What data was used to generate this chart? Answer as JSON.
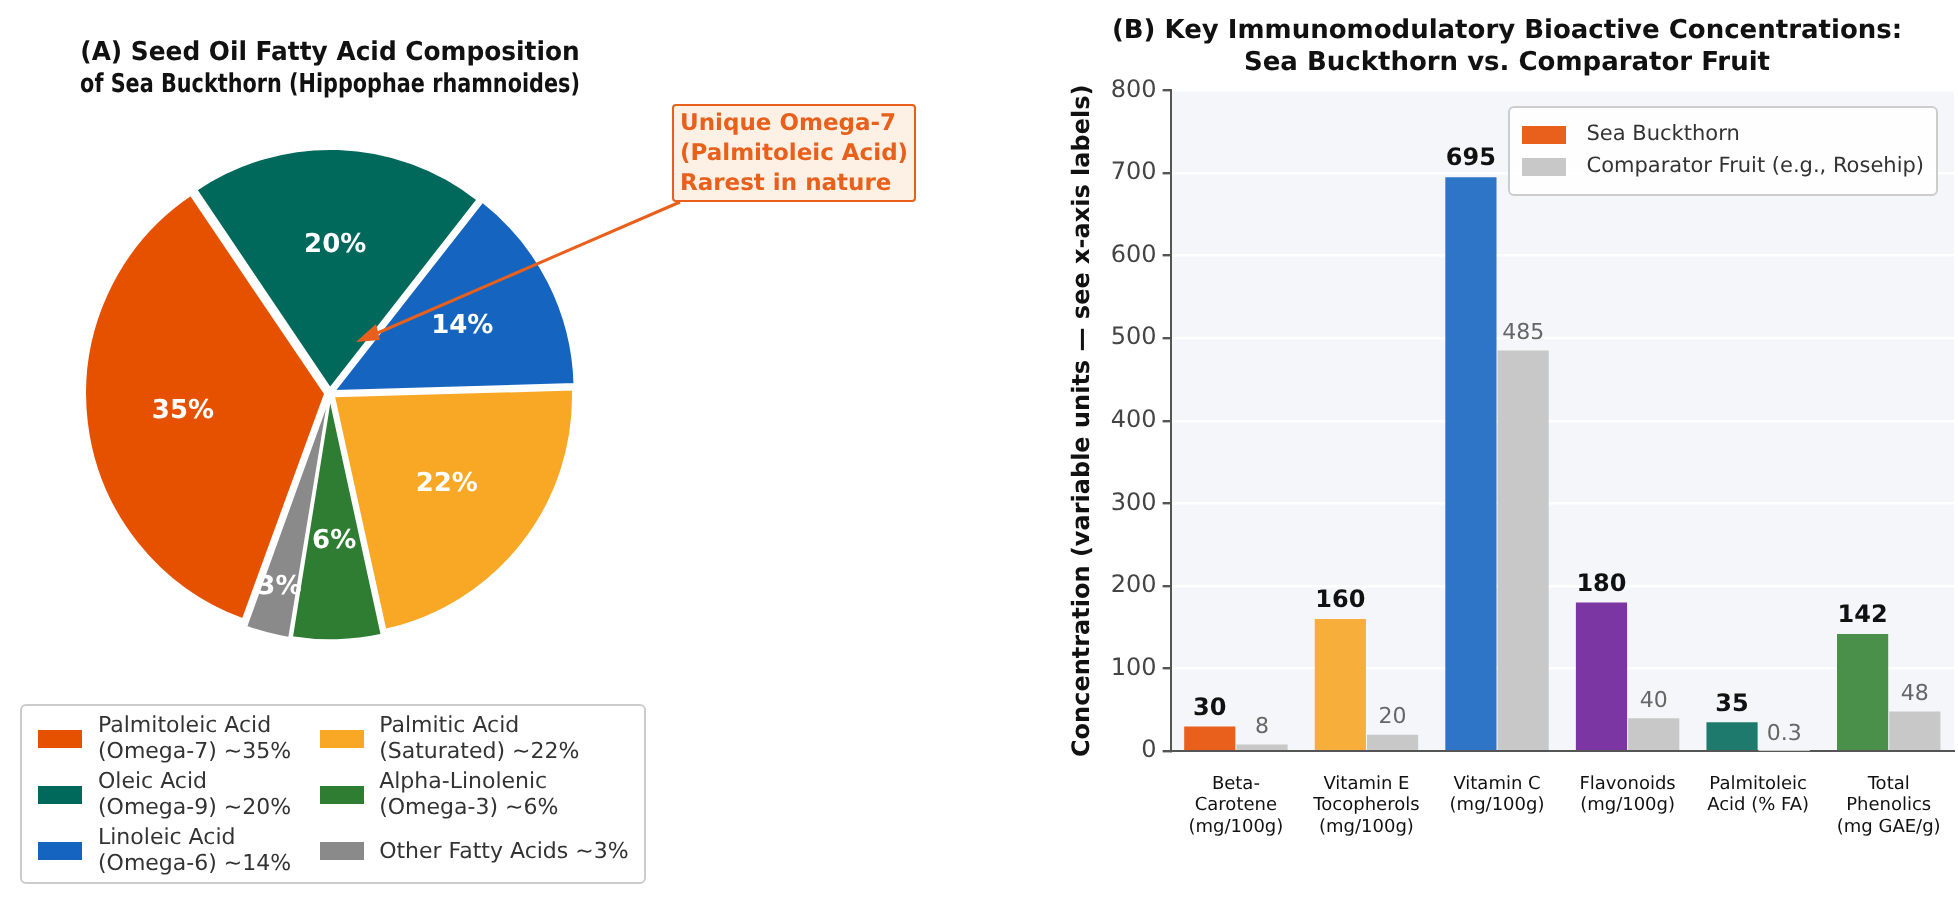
{
  "chart_data": [
    {
      "type": "pie",
      "title": "(A) Seed Oil Fatty Acid Composition\nof Sea Buckthorn (Hippophae rhamnoides)",
      "categories": [
        "Palmitoleic Acid\n(Omega-7) ~35%",
        "Oleic Acid\n(Omega-9) ~20%",
        "Linoleic Acid\n(Omega-6) ~14%",
        "Palmitic Acid\n(Saturated) ~22%",
        "Alpha-Linolenic\n(Omega-3) ~6%",
        "Other Fatty Acids ~3%"
      ],
      "values": [
        35,
        20,
        14,
        22,
        6,
        3
      ],
      "colors": [
        "#e65100",
        "#00695c",
        "#1565c0",
        "#f9a825",
        "#2e7d32",
        "#8a8a8a"
      ],
      "value_labels": [
        "35%",
        "20%",
        "14%",
        "22%",
        "6%",
        "3%"
      ],
      "legend": "bottom",
      "annotations": [
        "Unique Omega-7\n(Palmitoleic Acid)\nRarest in nature"
      ]
    },
    {
      "type": "bar",
      "title": "(B) Key Immunomodulatory Bioactive Concentrations:\nSea Buckthorn vs. Comparator Fruit",
      "categories": [
        "Beta-Carotene\n(mg/100g)",
        "Vitamin E\nTocopherols\n(mg/100g)",
        "Vitamin C\n(mg/100g)",
        "Flavonoids\n(mg/100g)",
        "Palmitoleic\nAcid (% FA)",
        "Total Phenolics\n(mg GAE/g)"
      ],
      "series": [
        {
          "name": "Sea Buckthorn",
          "color": "#e8601c",
          "colors": [
            "#e8601c",
            "#f7ae3a",
            "#2e75c7",
            "#7b36a3",
            "#1f7a6e",
            "#4a8f4a"
          ],
          "values": [
            30,
            160,
            695,
            180,
            35,
            142
          ]
        },
        {
          "name": "Comparator Fruit (e.g., Rosehip)",
          "color": "#c8c8c8",
          "values": [
            8,
            20,
            485,
            40,
            0.3,
            48
          ]
        }
      ],
      "ylabel": "Concentration (variable units — see x-axis labels)",
      "ylim": [
        0,
        800
      ],
      "yticks": [
        0,
        100,
        200,
        300,
        400,
        500,
        600,
        700,
        800
      ],
      "grid": "y",
      "legend": "top right",
      "data_labels": true
    }
  ]
}
